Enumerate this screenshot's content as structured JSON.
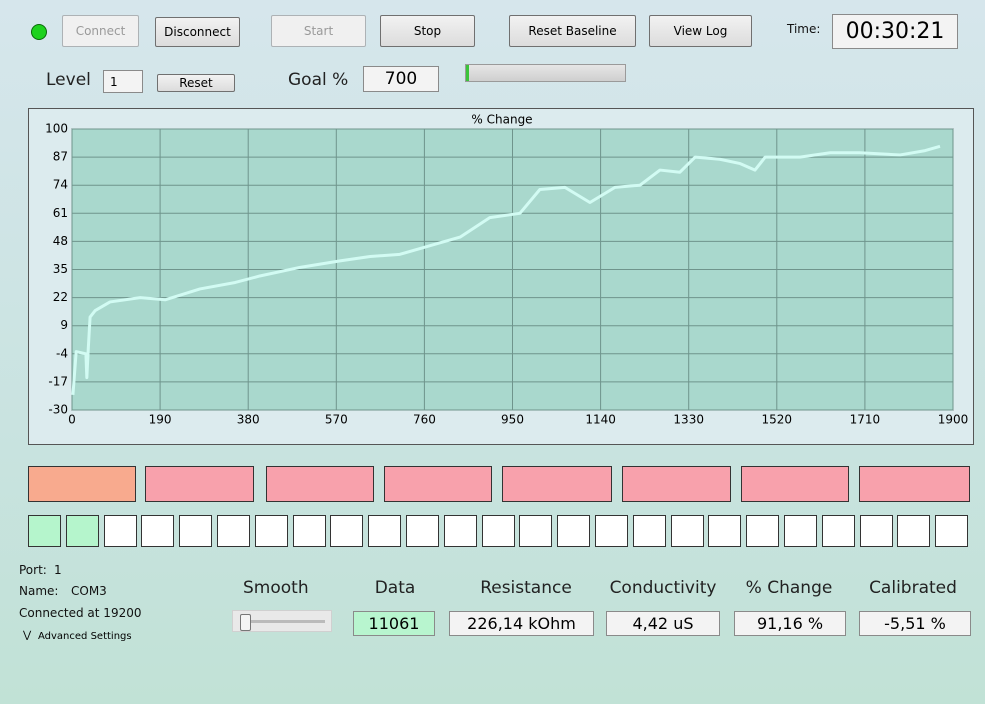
{
  "toolbar": {
    "buttons": [
      "Connect",
      "Disconnect",
      "Start",
      "Stop",
      "Reset Baseline",
      "View Log"
    ],
    "time_label": "Time:",
    "time": "00:30:21"
  },
  "level": {
    "label": "Level",
    "value": "1",
    "reset": "Reset"
  },
  "goal": {
    "label": "Goal %",
    "value": "700"
  },
  "chart_data": {
    "type": "line",
    "title": "% Change",
    "color": "#d2fbf3",
    "plot_color": "#a9d8cd",
    "grid": true,
    "x": [
      2,
      9,
      30,
      32,
      35,
      39,
      50,
      82,
      147,
      201,
      276,
      352,
      405,
      492,
      578,
      643,
      707,
      772,
      837,
      901,
      966,
      1009,
      1063,
      1117,
      1171,
      1225,
      1268,
      1311,
      1344,
      1397,
      1441,
      1473,
      1495,
      1570,
      1635,
      1699,
      1786,
      1840,
      1872
    ],
    "values": [
      -23,
      -3,
      -4,
      -15,
      -2,
      13,
      16,
      20,
      22,
      21,
      26,
      29,
      32,
      36,
      39,
      41,
      42,
      46,
      50,
      59,
      61,
      72,
      73,
      66,
      73,
      74,
      81,
      80,
      87,
      86,
      84,
      81,
      87,
      87,
      89,
      89,
      88,
      90,
      92
    ],
    "xlim": [
      0,
      1900
    ],
    "xticks": [
      0,
      190,
      380,
      570,
      760,
      950,
      1140,
      1330,
      1520,
      1710,
      1900
    ],
    "ylim": [
      -30,
      100
    ],
    "yticks": [
      -30,
      -17,
      -4,
      9,
      22,
      35,
      48,
      61,
      74,
      87,
      100
    ]
  },
  "connection": {
    "port_label": "Port:",
    "port": "1",
    "name_label": "Name:",
    "name": "COM3",
    "status": "Connected at 19200",
    "advanced": "Advanced Settings"
  },
  "smooth_label": "Smooth",
  "readouts": [
    {
      "label": "Data",
      "value": "11061"
    },
    {
      "label": "Resistance",
      "value": "226,14 kOhm"
    },
    {
      "label": "Conductivity",
      "value": "4,42 uS"
    },
    {
      "label": "% Change",
      "value": "91,16 %"
    },
    {
      "label": "Calibrated",
      "value": "-5,51 %"
    }
  ]
}
